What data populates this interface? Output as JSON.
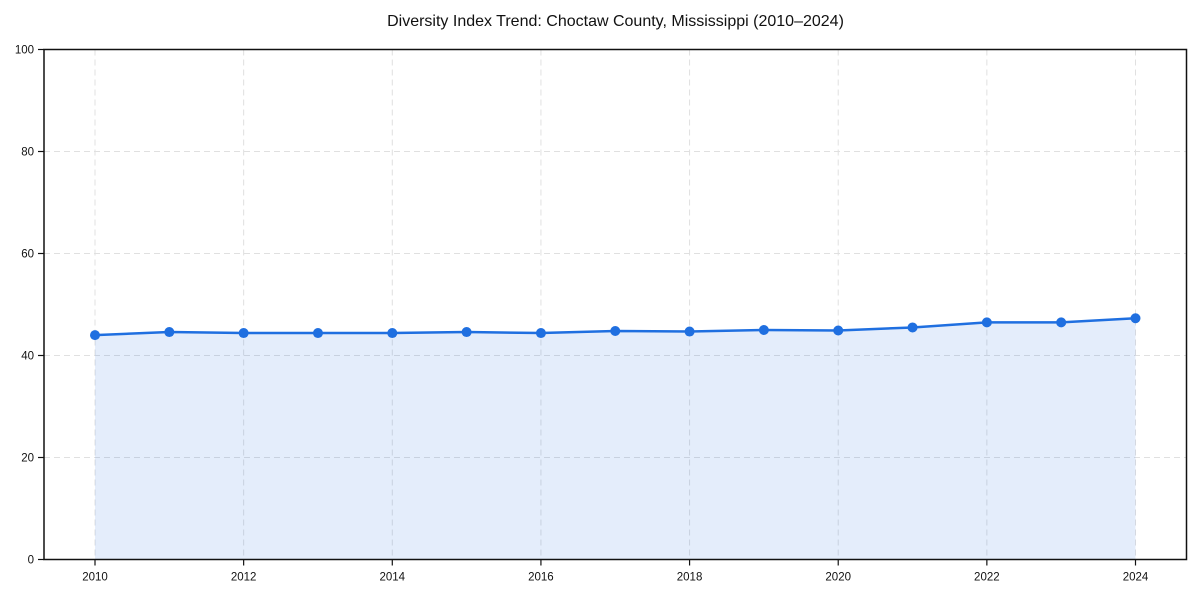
{
  "chart_data": {
    "type": "line",
    "title": "Diversity Index Trend: Choctaw County, Mississippi (2010–2024)",
    "x": [
      2010,
      2011,
      2012,
      2013,
      2014,
      2015,
      2016,
      2017,
      2018,
      2019,
      2020,
      2021,
      2022,
      2023,
      2024
    ],
    "values": [
      44.0,
      44.6,
      44.4,
      44.4,
      44.4,
      44.6,
      44.4,
      44.8,
      44.7,
      45.0,
      44.9,
      45.5,
      46.5,
      46.5,
      47.3
    ],
    "xlabel": "",
    "ylabel": "",
    "ylim": [
      0,
      100
    ],
    "yticks": [
      0,
      20,
      40,
      60,
      80,
      100
    ],
    "xticks": [
      2010,
      2012,
      2014,
      2016,
      2018,
      2020,
      2022,
      2024
    ],
    "grid": true,
    "legend": "none",
    "line_color": "#1f6fe0",
    "marker": "circle",
    "marker_radius": 5,
    "area_fill": true,
    "area_fill_opacity": 0.12,
    "grid_color": "#e0e0e0",
    "frame_color": "#111111"
  }
}
